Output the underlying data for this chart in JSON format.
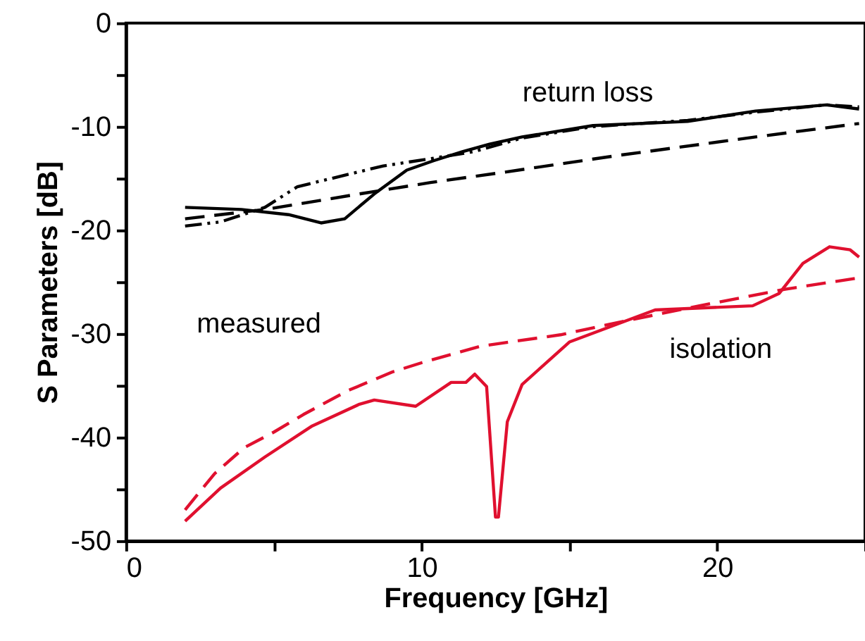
{
  "chart_data": {
    "type": "line",
    "xlabel": "Frequency [GHz]",
    "ylabel": "S Parameters [dB]",
    "xlim": [
      0,
      25
    ],
    "ylim": [
      -50,
      0
    ],
    "xticks": [
      0,
      {
        "value": 5,
        "label": null
      },
      10,
      {
        "value": 15,
        "label": null
      },
      20,
      {
        "value": 25,
        "label": null
      }
    ],
    "yticks": [
      -50,
      {
        "value": -45,
        "label": null
      },
      -40,
      {
        "value": -35,
        "label": null
      },
      -30,
      {
        "value": -25,
        "label": null
      },
      -20,
      {
        "value": -15,
        "label": null
      },
      -10,
      {
        "value": -5,
        "label": null
      },
      0
    ],
    "grid": false,
    "annotations": [
      "return loss",
      "measured",
      "isolation"
    ],
    "series": [
      {
        "color": "#000000",
        "line_style": "solid",
        "x": [
          2,
          3.9,
          5.5,
          6.6,
          7.4,
          8.4,
          9.5,
          10.4,
          11.4,
          12.3,
          13.4,
          15.8,
          19,
          21.3,
          23.7,
          24.8
        ],
        "values": [
          -17.8,
          -18,
          -18.5,
          -19.3,
          -18.9,
          -16.5,
          -14.2,
          -13.3,
          -12.4,
          -11.7,
          -11,
          -9.9,
          -9.5,
          -8.5,
          -7.9,
          -8.3
        ]
      },
      {
        "color": "#000000",
        "line_style": "dashdot",
        "x": [
          2,
          3.2,
          4.7,
          5.8,
          7.1,
          8.7,
          10.3,
          11.8,
          13.4,
          15.8,
          19,
          21.3,
          23.7,
          24.8
        ],
        "values": [
          -19.6,
          -19.2,
          -17.8,
          -15.8,
          -14.9,
          -13.8,
          -13.1,
          -12.4,
          -11.1,
          -10,
          -9.4,
          -8.6,
          -7.9,
          -8.1
        ]
      },
      {
        "color": "#000000",
        "line_style": "dashed",
        "x": [
          2,
          4.7,
          7.9,
          10.3,
          12.8,
          16.6,
          21.3,
          24.8
        ],
        "values": [
          -18.9,
          -18,
          -16.5,
          -15.4,
          -14.4,
          -12.8,
          -11,
          -9.7
        ]
      },
      {
        "color": "#e0102f",
        "line_style": "dashed",
        "x": [
          2,
          3,
          4,
          5,
          6,
          7.5,
          9,
          10,
          12,
          14.7,
          17,
          19.4,
          22.3,
          24.8
        ],
        "values": [
          -47,
          -43.5,
          -41,
          -39.5,
          -37.8,
          -35.5,
          -33.7,
          -32.8,
          -31.2,
          -30.1,
          -28.7,
          -27.3,
          -25.7,
          -24.6
        ]
      },
      {
        "color": "#e0102f",
        "line_style": "solid",
        "x": [
          2,
          3.2,
          4.7,
          6.3,
          7.9,
          8.4,
          9.8,
          11,
          11.5,
          11.8,
          12.2,
          12.5,
          12.6,
          12.9,
          13.4,
          15,
          17.9,
          21.2,
          22.1,
          22.9,
          23.8,
          24.5,
          24.8
        ],
        "values": [
          -48.1,
          -44.9,
          -41.9,
          -38.9,
          -36.8,
          -36.4,
          -37,
          -34.7,
          -34.7,
          -33.9,
          -35.1,
          -47.7,
          -47.7,
          -38.5,
          -34.9,
          -30.8,
          -27.7,
          -27.3,
          -26.1,
          -23.2,
          -21.6,
          -21.9,
          -22.6
        ]
      }
    ]
  }
}
